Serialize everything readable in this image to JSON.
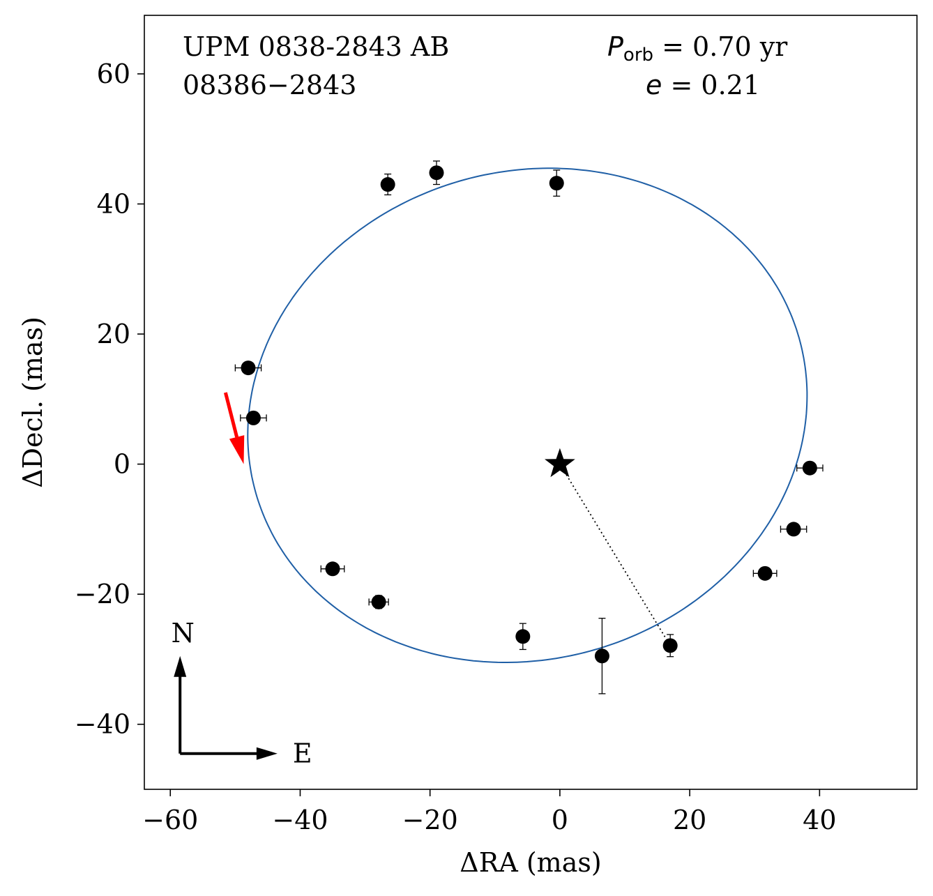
{
  "chart_data": {
    "type": "scatter",
    "title_lines": [
      "UPM 0838-2843 AB",
      "08386−2843"
    ],
    "annotations": {
      "period_symbol": "P",
      "period_subscript": "orb",
      "period_text": " =  0.70 yr",
      "ecc_symbol": "e",
      "ecc_text": " = 0.21"
    },
    "xlabel": "ΔRA  (mas)",
    "ylabel": "ΔDecl.  (mas)",
    "xlim": [
      -64,
      55
    ],
    "ylim": [
      -50,
      69
    ],
    "xticks": [
      -60,
      -40,
      -20,
      0,
      20,
      40
    ],
    "yticks": [
      -40,
      -20,
      0,
      20,
      40,
      60
    ],
    "xtick_labels": [
      "−60",
      "−40",
      "−20",
      "0",
      "20",
      "40"
    ],
    "ytick_labels": [
      "−40",
      "−20",
      "0",
      "20",
      "40",
      "60"
    ],
    "grid": false,
    "colors": {
      "orbit": "#1f5fa6",
      "points": "#000000",
      "motion_arrow": "#ff0000",
      "compass": "#000000"
    },
    "orbit": {
      "center": [
        -5.0,
        7.5
      ],
      "semi_axis_a": 43.5,
      "semi_axis_b": 37.5,
      "rotation_deg": 16
    },
    "primary_star": {
      "x": 0,
      "y": 0,
      "marker": "star"
    },
    "points": [
      {
        "x": -26.5,
        "y": 43.0,
        "xerr": 0.3,
        "yerr": 1.6
      },
      {
        "x": -19.0,
        "y": 44.8,
        "xerr": 0.3,
        "yerr": 1.8
      },
      {
        "x": -0.5,
        "y": 43.2,
        "xerr": 0.3,
        "yerr": 2.0
      },
      {
        "x": -48.0,
        "y": 14.8,
        "xerr": 2.0,
        "yerr": 0.4
      },
      {
        "x": -47.2,
        "y": 7.1,
        "xerr": 2.0,
        "yerr": 0.4
      },
      {
        "x": -35.0,
        "y": -16.1,
        "xerr": 1.8,
        "yerr": 0.4
      },
      {
        "x": -27.9,
        "y": -21.2,
        "xerr": 1.5,
        "yerr": 1.0
      },
      {
        "x": -5.7,
        "y": -26.5,
        "xerr": 0.3,
        "yerr": 2.0
      },
      {
        "x": 6.5,
        "y": -29.5,
        "xerr": 0.3,
        "yerr": 5.8
      },
      {
        "x": 17.0,
        "y": -27.9,
        "xerr": 0.3,
        "yerr": 1.7
      },
      {
        "x": 31.6,
        "y": -16.8,
        "xerr": 1.8,
        "yerr": 0.4
      },
      {
        "x": 36.0,
        "y": -10.0,
        "xerr": 2.0,
        "yerr": 0.4
      },
      {
        "x": 38.5,
        "y": -0.6,
        "xerr": 2.0,
        "yerr": 0.4
      }
    ],
    "separation_line": {
      "from": [
        0,
        0
      ],
      "to": [
        17.0,
        -27.9
      ],
      "style": "dotted"
    },
    "motion_arrow": {
      "from": [
        -51.5,
        11.0
      ],
      "to": [
        -48.7,
        0.0
      ]
    },
    "compass": {
      "origin": [
        -58.5,
        -44.5
      ],
      "north_tip": [
        -58.5,
        -29.5
      ],
      "east_tip": [
        -43.5,
        -44.5
      ],
      "north_label": "N",
      "east_label": "E"
    }
  }
}
